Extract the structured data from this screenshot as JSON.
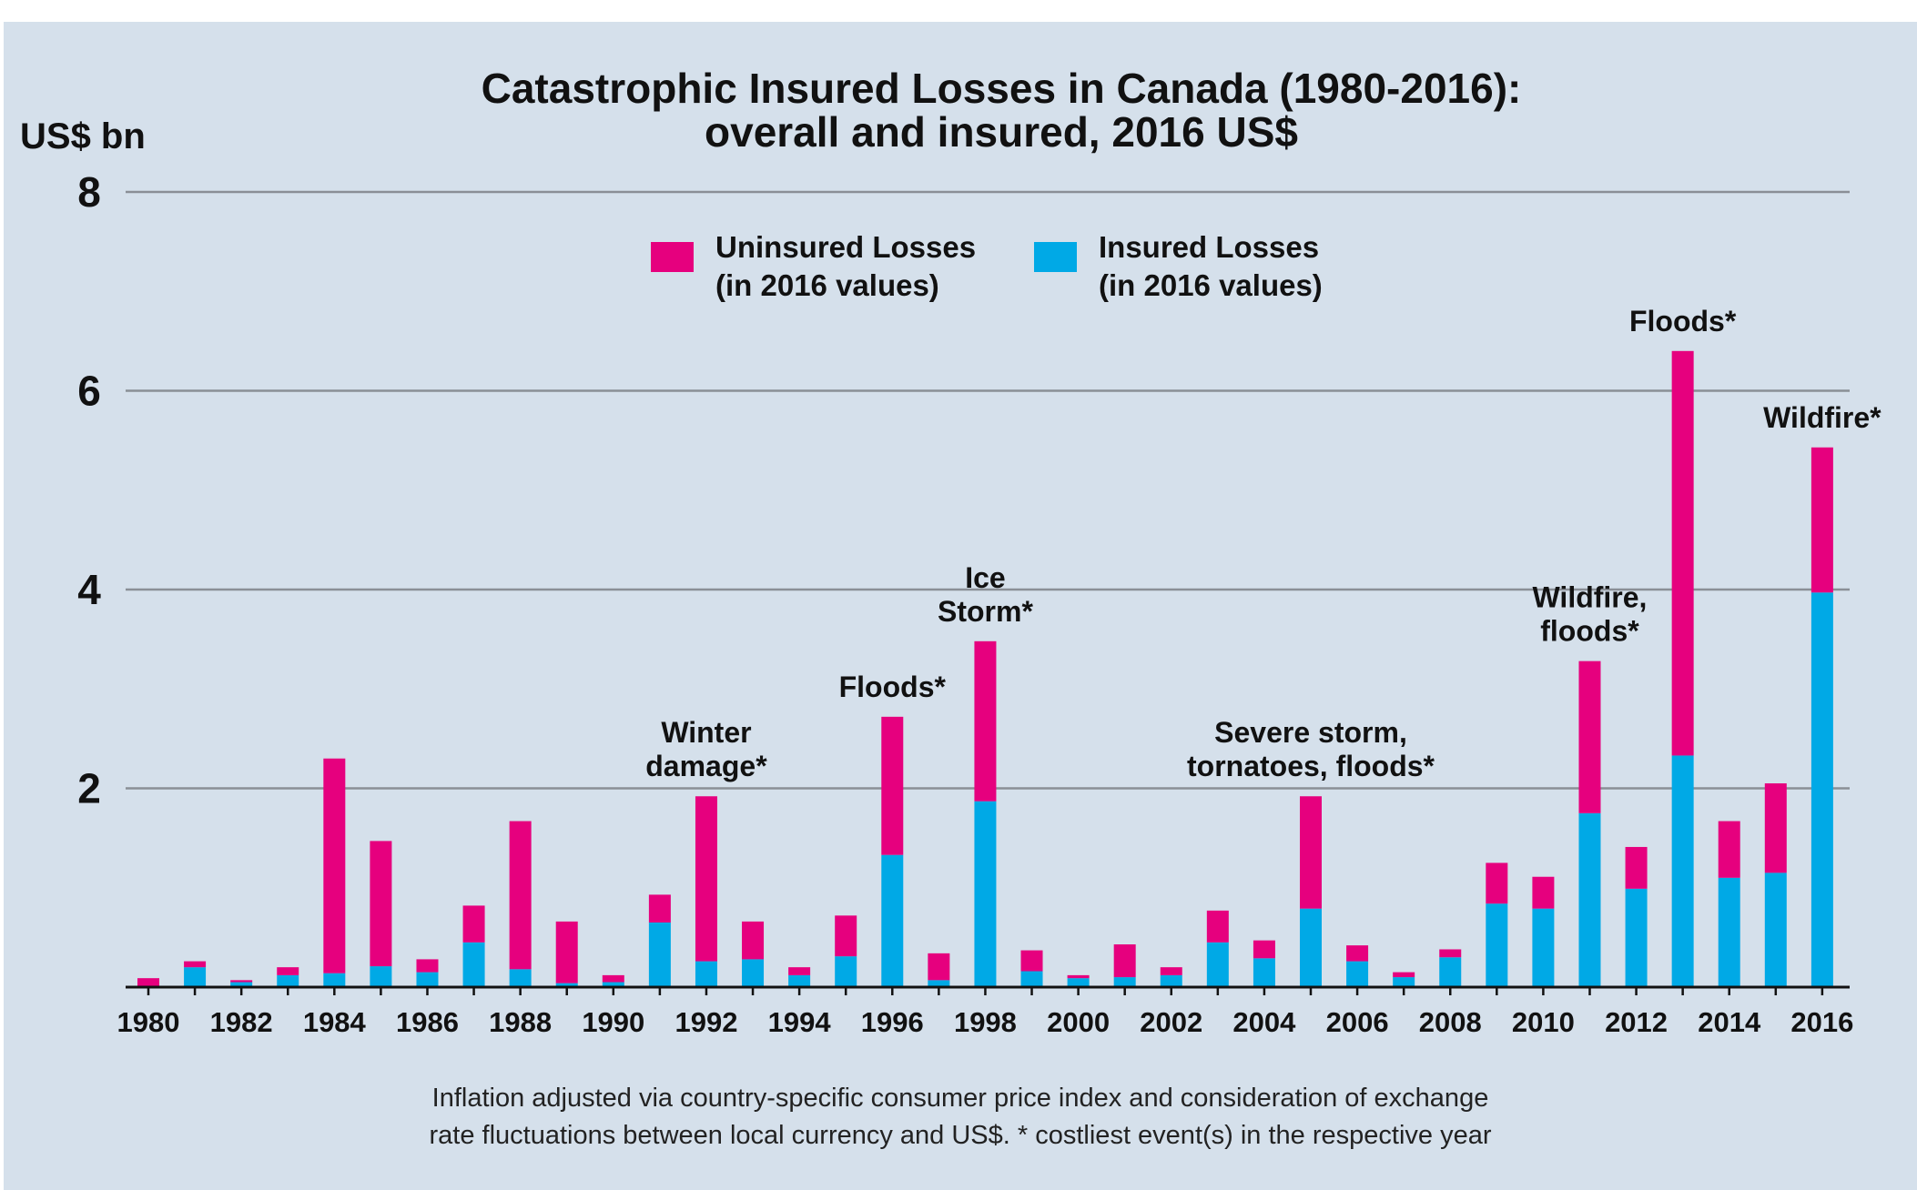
{
  "colors": {
    "background": "#d5e0eb",
    "uninsured": "#e6007e",
    "insured": "#00a9e6",
    "grid": "#8a8f96",
    "axis": "#111111"
  },
  "chart_data": {
    "type": "bar",
    "stacked": true,
    "title_line1": "Catastrophic Insured Losses in Canada (1980-2016):",
    "title_line2": "overall and insured, 2016 US$",
    "ylabel": "US$ bn",
    "ylim": [
      0,
      8
    ],
    "yticks": [
      2,
      4,
      6,
      8
    ],
    "grid": true,
    "legend_position": "top-center",
    "x": [
      1980,
      1981,
      1982,
      1983,
      1984,
      1985,
      1986,
      1987,
      1988,
      1989,
      1990,
      1991,
      1992,
      1993,
      1994,
      1995,
      1996,
      1997,
      1998,
      1999,
      2000,
      2001,
      2002,
      2003,
      2004,
      2005,
      2006,
      2007,
      2008,
      2009,
      2010,
      2011,
      2012,
      2013,
      2014,
      2015,
      2016
    ],
    "xtick_labels": [
      "1980",
      "1982",
      "1984",
      "1986",
      "1988",
      "1990",
      "1992",
      "1994",
      "1996",
      "1998",
      "2000",
      "2002",
      "2004",
      "2006",
      "2008",
      "2010",
      "2012",
      "2014",
      "2016"
    ],
    "series": [
      {
        "name": "Insured Losses",
        "name_line2": "(in 2016 values)",
        "color": "#00a9e6",
        "values": [
          0.0,
          0.2,
          0.05,
          0.12,
          0.14,
          0.21,
          0.15,
          0.45,
          0.18,
          0.04,
          0.05,
          0.65,
          0.26,
          0.28,
          0.12,
          0.31,
          1.33,
          0.07,
          1.87,
          0.16,
          0.09,
          0.1,
          0.12,
          0.45,
          0.29,
          0.79,
          0.26,
          0.1,
          0.3,
          0.84,
          0.79,
          1.75,
          0.99,
          2.33,
          1.1,
          1.15,
          3.97
        ]
      },
      {
        "name": "Uninsured Losses",
        "name_line2": "(in 2016 values)",
        "color": "#e6007e",
        "values": [
          0.09,
          0.06,
          0.02,
          0.08,
          2.16,
          1.26,
          0.13,
          0.37,
          1.49,
          0.62,
          0.07,
          0.28,
          1.66,
          0.38,
          0.08,
          0.41,
          1.39,
          0.27,
          1.61,
          0.21,
          0.03,
          0.33,
          0.08,
          0.32,
          0.18,
          1.13,
          0.16,
          0.05,
          0.08,
          0.41,
          0.32,
          1.53,
          0.42,
          4.07,
          0.57,
          0.9,
          1.46
        ]
      }
    ],
    "annotations": [
      {
        "year": 1992,
        "lines": [
          "Winter",
          "damage*"
        ]
      },
      {
        "year": 1996,
        "lines": [
          "Floods*"
        ]
      },
      {
        "year": 1998,
        "lines": [
          "Ice",
          "Storm*"
        ]
      },
      {
        "year": 2005,
        "lines": [
          "Severe storm,",
          "tornatoes, floods*"
        ]
      },
      {
        "year": 2011,
        "lines": [
          "Wildfire,",
          "floods*"
        ]
      },
      {
        "year": 2013,
        "lines": [
          "Floods*"
        ]
      },
      {
        "year": 2016,
        "lines": [
          "Wildfire*"
        ]
      }
    ]
  },
  "footnote": {
    "line1": "Inflation adjusted via country-specific consumer price index and consideration of exchange",
    "line2": "rate fluctuations between local currency and US$. * costliest event(s) in the respective year"
  }
}
